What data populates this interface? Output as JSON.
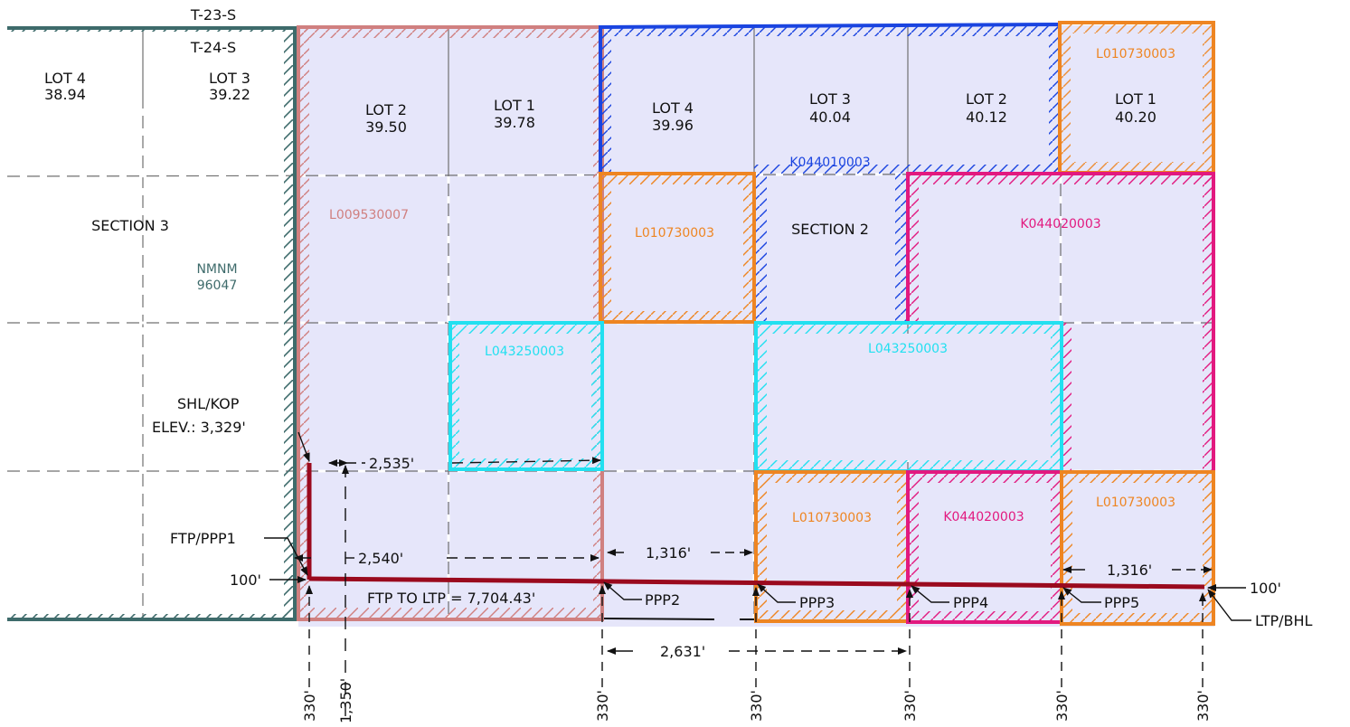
{
  "township": {
    "north": "T-23-S",
    "south": "T-24-S"
  },
  "sections": {
    "section3": "SECTION  3",
    "section2": "SECTION  2"
  },
  "lots_section3": [
    {
      "name": "LOT  4",
      "acres": "38.94"
    },
    {
      "name": "LOT  3",
      "acres": "39.22"
    }
  ],
  "lots_section2": [
    {
      "name": "LOT  2",
      "acres": "39.50"
    },
    {
      "name": "LOT  1",
      "acres": "39.78"
    },
    {
      "name": "LOT  4",
      "acres": "39.96"
    },
    {
      "name": "LOT  3",
      "acres": "40.04"
    },
    {
      "name": "LOT  2",
      "acres": "40.12"
    },
    {
      "name": "LOT  1",
      "acres": "40.20"
    }
  ],
  "leases": {
    "nmnm_1": "NMNM",
    "nmnm_2": "96047",
    "l009530007": "L009530007",
    "k044010003": "K044010003",
    "l010730003_ne": "L010730003",
    "l010730003_mid": "L010730003",
    "k044020003_ne": "K044020003",
    "l043250003_w": "L043250003",
    "l043250003_e": "L043250003",
    "l010730003_sw": "L010730003",
    "k044020003_s": "K044020003",
    "l010730003_se": "L010730003"
  },
  "well": {
    "shl_line1": "SHL/KOP",
    "shl_line2": "ELEV.:  3,329'",
    "ftp": "FTP/PPP1",
    "ftp_to_ltp": "FTP  TO  LTP  =  7,704.43'",
    "ppp2": "PPP2",
    "ppp3": "PPP3",
    "ppp4": "PPP4",
    "ppp5": "PPP5",
    "ltp": "LTP/BHL"
  },
  "dimensions": {
    "d2535": "2,535'",
    "d2540": "2,540'",
    "d1316_a": "1,316'",
    "d1316_b": "1,316'",
    "d2631": "2,631'",
    "setback_w": "100'",
    "setback_e": "100'",
    "bottom": [
      "330'",
      "1,350'",
      "330'",
      "330'",
      "330'",
      "330'",
      "330'"
    ]
  },
  "colors": {
    "nmnm": "#3e6b6b",
    "l009530007": "#d08080",
    "k044010003": "#1a44e0",
    "l010730003": "#ee8522",
    "k044020003": "#e2197f",
    "l043250003": "#22e0f0",
    "wellbore": "#9a0a1e",
    "unit_fill": "#e6e6fa",
    "grid": "#707070"
  }
}
